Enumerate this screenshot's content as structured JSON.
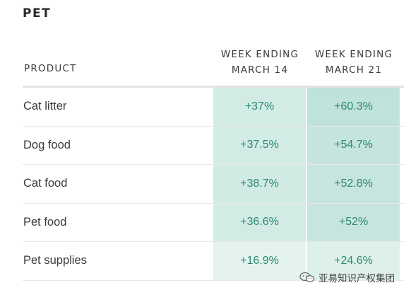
{
  "section": {
    "title": "PET"
  },
  "chart_data": {
    "type": "table",
    "columns": [
      "PRODUCT",
      "WEEK ENDING MARCH 14",
      "WEEK ENDING MARCH 21"
    ],
    "column_header_lines": [
      [
        "PRODUCT"
      ],
      [
        "WEEK ENDING",
        "MARCH 14"
      ],
      [
        "WEEK ENDING",
        "MARCH 21"
      ]
    ],
    "rows": [
      {
        "product": "Cat litter",
        "week_march_14": "+37%",
        "week_march_21": "+60.3%"
      },
      {
        "product": "Dog food",
        "week_march_14": "+37.5%",
        "week_march_21": "+54.7%"
      },
      {
        "product": "Cat food",
        "week_march_14": "+38.7%",
        "week_march_21": "+52.8%"
      },
      {
        "product": "Pet food",
        "week_march_14": "+36.6%",
        "week_march_21": "+52%"
      },
      {
        "product": "Pet supplies",
        "week_march_14": "+16.9%",
        "week_march_21": "+24.6%"
      }
    ],
    "values_march_14": [
      37,
      37.5,
      38.7,
      36.6,
      16.9
    ],
    "values_march_21": [
      60.3,
      54.7,
      52.8,
      52,
      24.6
    ],
    "heat_scale": {
      "min": 0,
      "max": 60.3,
      "low_color": "#f3f9f7",
      "high_color": "#bfe2da"
    },
    "value_text_color": "#2b8a6e"
  },
  "watermark": {
    "text": "亚易知识产权集团",
    "icon": "wechat-icon"
  }
}
